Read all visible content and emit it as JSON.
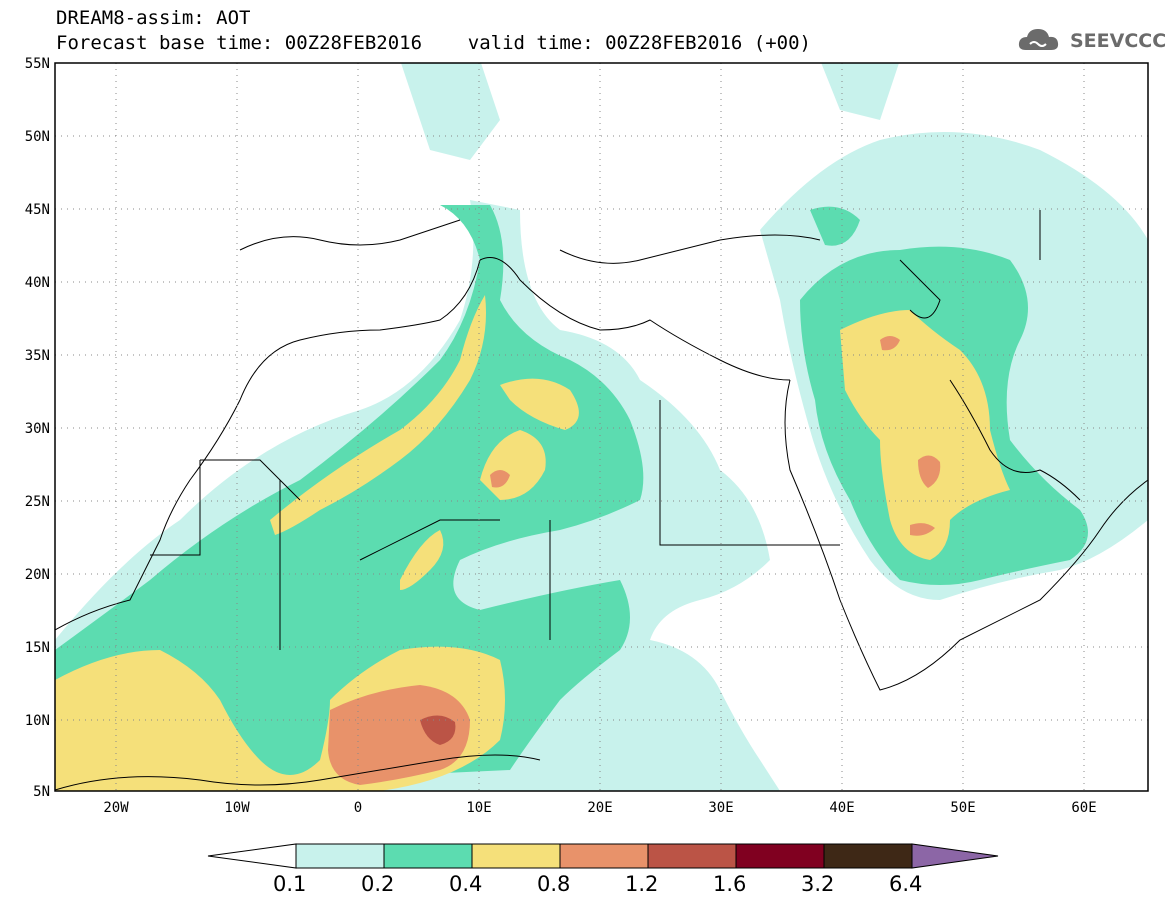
{
  "header": {
    "line1": "DREAM8-assim: AOT",
    "line2": "Forecast base time: 00Z28FEB2016    valid time: 00Z28FEB2016 (+00)"
  },
  "logo": {
    "text": "SEEVCCC",
    "icon": "cloud-logo-icon"
  },
  "map": {
    "lat_ticks": [
      "55N",
      "50N",
      "45N",
      "40N",
      "35N",
      "30N",
      "25N",
      "20N",
      "15N",
      "10N",
      "5N"
    ],
    "lon_ticks": [
      "20W",
      "10W",
      "0",
      "10E",
      "20E",
      "30E",
      "40E",
      "50E",
      "60E"
    ]
  },
  "colorbar": {
    "labels": [
      "0.1",
      "0.2",
      "0.4",
      "0.8",
      "1.2",
      "1.6",
      "3.2",
      "6.4"
    ],
    "colors": [
      "#ffffff",
      "#c8f2ec",
      "#5cdcb0",
      "#f5e07a",
      "#e8926a",
      "#bb5446",
      "#800020",
      "#3e2816",
      "#8c66a6"
    ]
  }
}
